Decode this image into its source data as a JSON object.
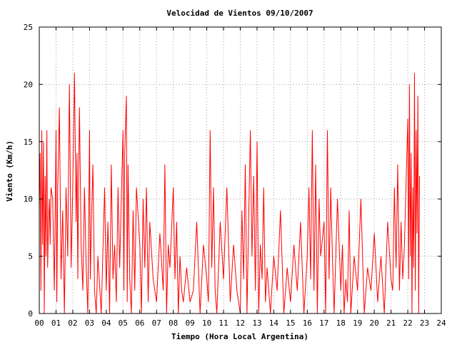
{
  "chart_data": {
    "type": "line",
    "title": "Velocidad de Vientos 09/10/2007",
    "xlabel": "Tiempo (Hora Local Argentina)",
    "ylabel": "Viento (Km/h)",
    "xlim": [
      0,
      24
    ],
    "ylim": [
      0,
      25
    ],
    "xticks": [
      "00",
      "01",
      "02",
      "03",
      "04",
      "05",
      "06",
      "07",
      "08",
      "09",
      "10",
      "11",
      "12",
      "13",
      "14",
      "15",
      "16",
      "17",
      "18",
      "19",
      "20",
      "21",
      "22",
      "23",
      "24"
    ],
    "yticks": [
      0,
      5,
      10,
      15,
      20,
      25
    ],
    "grid": true,
    "series": [
      {
        "color": "#ff0000",
        "x": [
          0.0,
          0.05,
          0.1,
          0.15,
          0.2,
          0.25,
          0.3,
          0.35,
          0.4,
          0.45,
          0.5,
          0.55,
          0.6,
          0.65,
          0.7,
          0.8,
          0.9,
          1.0,
          1.05,
          1.1,
          1.15,
          1.2,
          1.3,
          1.4,
          1.5,
          1.6,
          1.7,
          1.8,
          1.9,
          2.0,
          2.1,
          2.2,
          2.25,
          2.3,
          2.35,
          2.4,
          2.5,
          2.6,
          2.7,
          2.8,
          2.9,
          3.0,
          3.05,
          3.1,
          3.2,
          3.3,
          3.4,
          3.5,
          3.7,
          3.9,
          4.0,
          4.1,
          4.2,
          4.3,
          4.4,
          4.5,
          4.6,
          4.7,
          4.8,
          4.9,
          5.0,
          5.05,
          5.1,
          5.2,
          5.25,
          5.3,
          5.4,
          5.5,
          5.6,
          5.7,
          5.8,
          6.0,
          6.1,
          6.2,
          6.3,
          6.4,
          6.5,
          6.6,
          6.8,
          7.0,
          7.2,
          7.4,
          7.5,
          7.6,
          7.7,
          7.8,
          8.0,
          8.1,
          8.2,
          8.3,
          8.4,
          8.5,
          8.6,
          8.8,
          9.0,
          9.2,
          9.4,
          9.6,
          9.8,
          10.0,
          10.1,
          10.2,
          10.3,
          10.4,
          10.5,
          10.6,
          10.8,
          11.0,
          11.2,
          11.4,
          11.6,
          11.8,
          12.0,
          12.1,
          12.2,
          12.3,
          12.4,
          12.5,
          12.6,
          12.7,
          12.8,
          12.9,
          13.0,
          13.1,
          13.2,
          13.3,
          13.4,
          13.5,
          13.6,
          13.8,
          14.0,
          14.2,
          14.4,
          14.6,
          14.8,
          15.0,
          15.2,
          15.4,
          15.6,
          15.8,
          16.0,
          16.1,
          16.2,
          16.3,
          16.4,
          16.5,
          16.6,
          16.7,
          16.8,
          17.0,
          17.1,
          17.2,
          17.3,
          17.4,
          17.5,
          17.6,
          17.8,
          18.0,
          18.1,
          18.2,
          18.3,
          18.4,
          18.5,
          18.6,
          18.8,
          19.0,
          19.2,
          19.4,
          19.6,
          19.8,
          20.0,
          20.2,
          20.4,
          20.6,
          20.8,
          21.0,
          21.1,
          21.2,
          21.3,
          21.4,
          21.5,
          21.6,
          21.7,
          21.8,
          22.0,
          22.05,
          22.1,
          22.15,
          22.2,
          22.25,
          22.3,
          22.35,
          22.4,
          22.45,
          22.5,
          22.55,
          22.6,
          22.65,
          22.7
        ],
        "y": [
          9,
          14,
          2,
          16,
          6,
          15,
          0,
          12,
          5,
          16,
          4,
          8,
          10,
          6,
          11,
          10,
          2,
          16,
          1,
          11,
          14,
          18,
          3,
          9,
          0,
          11,
          5,
          20,
          4,
          11,
          21,
          8,
          14,
          3,
          12,
          18,
          6,
          2,
          11,
          4,
          0,
          16,
          3,
          7,
          13,
          2,
          0,
          5,
          0,
          11,
          2,
          8,
          0,
          13,
          3,
          6,
          1,
          11,
          4,
          10,
          16,
          2,
          14,
          19,
          1,
          13,
          3,
          0,
          9,
          2,
          11,
          6,
          0,
          10,
          4,
          11,
          1,
          8,
          3,
          1,
          7,
          2,
          13,
          0,
          6,
          4,
          11,
          3,
          8,
          0,
          5,
          2,
          1,
          4,
          1,
          2,
          8,
          0,
          6,
          3,
          1,
          16,
          4,
          11,
          2,
          0,
          8,
          3,
          11,
          1,
          6,
          2,
          0,
          9,
          3,
          13,
          0,
          8,
          16,
          5,
          12,
          2,
          15,
          0,
          6,
          3,
          11,
          1,
          4,
          0,
          5,
          2,
          9,
          0,
          4,
          1,
          6,
          2,
          8,
          0,
          5,
          11,
          3,
          16,
          2,
          13,
          0,
          10,
          5,
          8,
          0,
          16,
          3,
          11,
          5,
          0,
          10,
          2,
          6,
          0,
          3,
          1,
          9,
          0,
          5,
          2,
          10,
          0,
          4,
          2,
          7,
          1,
          5,
          0,
          8,
          3,
          2,
          11,
          4,
          13,
          2,
          8,
          3,
          6,
          17,
          3,
          20,
          5,
          14,
          0,
          11,
          4,
          21,
          2,
          16,
          7,
          19,
          0,
          12
        ]
      }
    ]
  }
}
